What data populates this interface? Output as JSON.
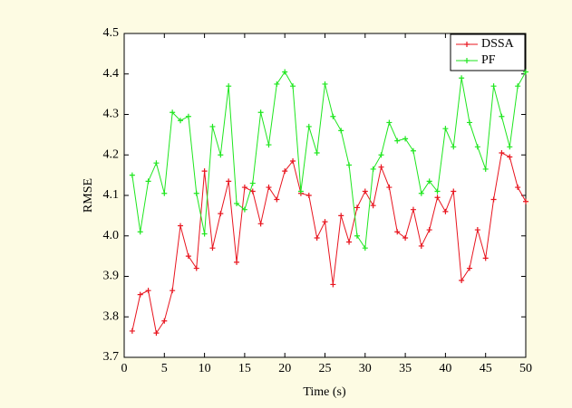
{
  "chart_data": {
    "type": "line",
    "xlabel": "Time (s)",
    "ylabel": "RMSE",
    "x": [
      1,
      2,
      3,
      4,
      5,
      6,
      7,
      8,
      9,
      10,
      11,
      12,
      13,
      14,
      15,
      16,
      17,
      18,
      19,
      20,
      21,
      22,
      23,
      24,
      25,
      26,
      27,
      28,
      29,
      30,
      31,
      32,
      33,
      34,
      35,
      36,
      37,
      38,
      39,
      40,
      41,
      42,
      43,
      44,
      45,
      46,
      47,
      48,
      49,
      50
    ],
    "series": [
      {
        "name": "DSSA",
        "color": "#e8141e",
        "values": [
          3.765,
          3.855,
          3.865,
          3.76,
          3.79,
          3.865,
          4.025,
          3.95,
          3.92,
          4.16,
          3.97,
          4.055,
          4.135,
          3.935,
          4.12,
          4.11,
          4.03,
          4.12,
          4.09,
          4.16,
          4.185,
          4.105,
          4.1,
          3.995,
          4.035,
          3.88,
          4.05,
          3.985,
          4.07,
          4.11,
          4.075,
          4.17,
          4.12,
          4.01,
          3.995,
          4.065,
          3.975,
          4.015,
          4.095,
          4.06,
          4.11,
          3.89,
          3.92,
          4.015,
          3.945,
          4.09,
          4.205,
          4.195,
          4.12,
          4.085
        ]
      },
      {
        "name": "PF",
        "color": "#1ee61e",
        "values": [
          4.15,
          4.01,
          4.135,
          4.18,
          4.105,
          4.305,
          4.285,
          4.295,
          4.105,
          4.005,
          4.27,
          4.2,
          4.37,
          4.08,
          4.065,
          4.13,
          4.305,
          4.225,
          4.375,
          4.405,
          4.37,
          4.11,
          4.27,
          4.205,
          4.375,
          4.295,
          4.26,
          4.175,
          4.0,
          3.97,
          4.165,
          4.2,
          4.28,
          4.235,
          4.24,
          4.21,
          4.105,
          4.135,
          4.11,
          4.265,
          4.22,
          4.39,
          4.28,
          4.22,
          4.165,
          4.37,
          4.295,
          4.22,
          4.37,
          4.405
        ]
      }
    ],
    "xlim": [
      0,
      50
    ],
    "xticks": [
      0,
      5,
      10,
      15,
      20,
      25,
      30,
      35,
      40,
      45,
      50
    ],
    "ylim": [
      3.7,
      4.5
    ],
    "yticks": [
      3.7,
      3.8,
      3.9,
      {
        "value": 4,
        "label": "4.0"
      },
      4.1,
      4.2,
      4.3,
      4.4,
      4.5
    ],
    "grid": false,
    "legend": "top-right"
  }
}
